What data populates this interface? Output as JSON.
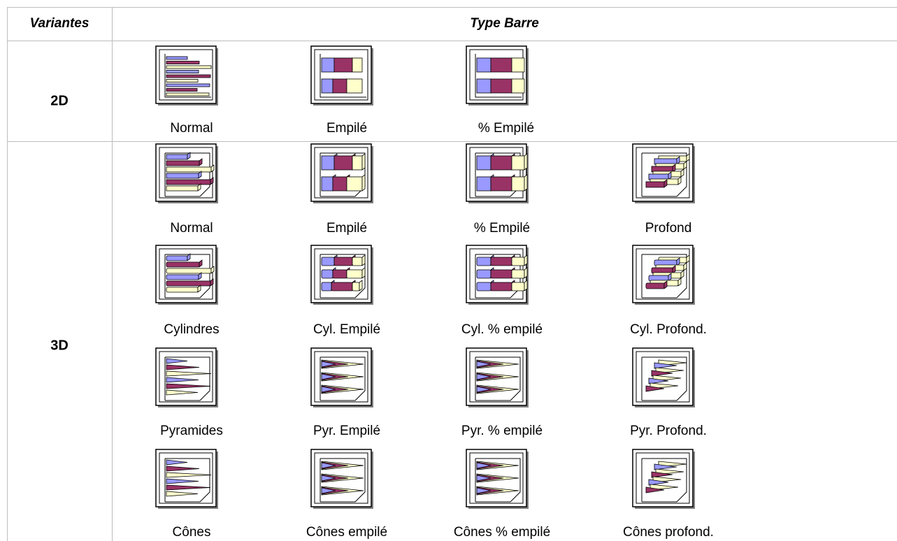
{
  "header": {
    "col1": "Variantes",
    "col2": "Type Barre"
  },
  "rows": [
    {
      "label": "2D",
      "items": [
        "Normal",
        "Empilé",
        "% Empilé"
      ]
    },
    {
      "label": "3D",
      "items": [
        "Normal",
        "Empilé",
        "% Empilé",
        "Profond",
        "Cylindres",
        "Cyl. Empilé",
        "Cyl. % empilé",
        "Cyl. Profond.",
        "Pyramides",
        "Pyr. Empilé",
        "Pyr. % empilé",
        "Pyr. Profond.",
        "Cônes",
        "Cônes empilé",
        "Cônes % empilé",
        "Cônes profond."
      ]
    }
  ]
}
